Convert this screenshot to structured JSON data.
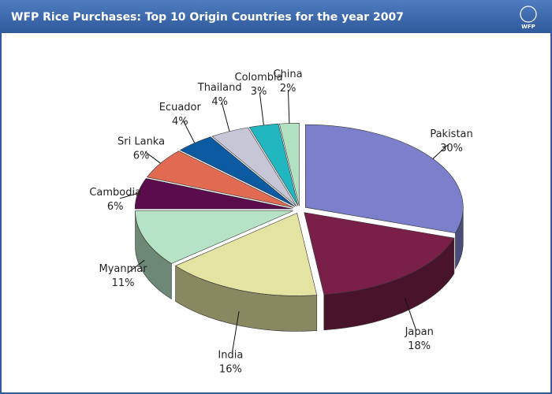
{
  "chart_data": {
    "type": "pie",
    "title": "WFP Rice Purchases: Top 10 Origin Countries for the year 2007",
    "logo": "WFP",
    "categories": [
      "Pakistan",
      "Japan",
      "India",
      "Myanmar",
      "Cambodia",
      "Sri Lanka",
      "Ecuador",
      "Thailand",
      "Colombia",
      "China"
    ],
    "values": [
      30,
      18,
      16,
      11,
      6,
      6,
      4,
      4,
      3,
      2
    ],
    "value_labels": [
      "30%",
      "18%",
      "16%",
      "11%",
      "6%",
      "6%",
      "4%",
      "4%",
      "3%",
      "2%"
    ],
    "colors": [
      "#7c80cc",
      "#7a2048",
      "#e4e4a2",
      "#b6e2c6",
      "#5a0c4c",
      "#e06a52",
      "#0c5aa2",
      "#c6c6d6",
      "#22b6c0",
      "#b2e2c2"
    ]
  }
}
